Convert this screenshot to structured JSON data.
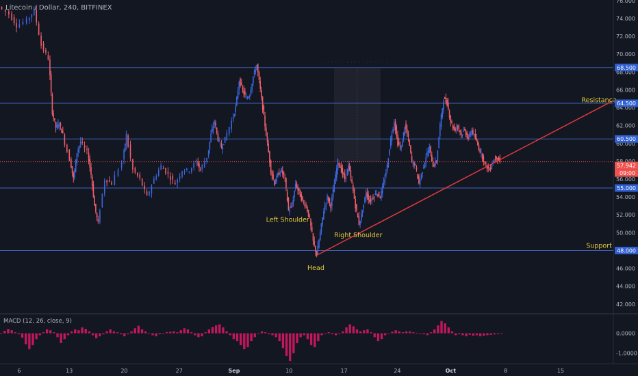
{
  "chart_data": [
    {
      "type": "candlestick",
      "title": "Litecoin / Dollar, 240, BITFINEX",
      "xlabel": "",
      "ylabel": "",
      "x_ticks": [
        "6",
        "13",
        "20",
        "27",
        "Sep",
        "10",
        "17",
        "24",
        "Oct",
        "8",
        "15"
      ],
      "y_ticks": [
        "76.000",
        "74.000",
        "72.000",
        "70.000",
        "68.000",
        "66.000",
        "64.000",
        "62.000",
        "60.000",
        "58.000",
        "56.000",
        "54.000",
        "52.000",
        "50.000",
        "48.000",
        "46.000",
        "44.000",
        "42.000"
      ],
      "ylim": [
        41.5,
        76.5
      ],
      "grid": false,
      "last_price": "57.942",
      "countdown": "09:00",
      "path_points": [
        {
          "x": 0,
          "y": 75.3
        },
        {
          "x": 3,
          "y": 74.5
        },
        {
          "x": 5,
          "y": 73.2
        },
        {
          "x": 8,
          "y": 73.8
        },
        {
          "x": 10,
          "y": 74.9
        },
        {
          "x": 12,
          "y": 71.0
        },
        {
          "x": 14,
          "y": 69.5
        },
        {
          "x": 15,
          "y": 63.5
        },
        {
          "x": 16,
          "y": 61.8
        },
        {
          "x": 17,
          "y": 62.2
        },
        {
          "x": 18,
          "y": 61.0
        },
        {
          "x": 20,
          "y": 58.2
        },
        {
          "x": 21,
          "y": 56.0
        },
        {
          "x": 22,
          "y": 59.0
        },
        {
          "x": 23,
          "y": 60.2
        },
        {
          "x": 25,
          "y": 59.0
        },
        {
          "x": 26,
          "y": 56.5
        },
        {
          "x": 27,
          "y": 53.0
        },
        {
          "x": 28,
          "y": 51.0
        },
        {
          "x": 30,
          "y": 56.0
        },
        {
          "x": 32,
          "y": 55.5
        },
        {
          "x": 35,
          "y": 58.0
        },
        {
          "x": 36,
          "y": 61.0
        },
        {
          "x": 38,
          "y": 57.0
        },
        {
          "x": 40,
          "y": 56.0
        },
        {
          "x": 42,
          "y": 54.0
        },
        {
          "x": 44,
          "y": 56.0
        },
        {
          "x": 46,
          "y": 57.5
        },
        {
          "x": 48,
          "y": 56.5
        },
        {
          "x": 50,
          "y": 55.5
        },
        {
          "x": 52,
          "y": 57.0
        },
        {
          "x": 54,
          "y": 57.0
        },
        {
          "x": 56,
          "y": 58.0
        },
        {
          "x": 57,
          "y": 57.0
        },
        {
          "x": 59,
          "y": 58.5
        },
        {
          "x": 60,
          "y": 61.0
        },
        {
          "x": 61,
          "y": 62.5
        },
        {
          "x": 62,
          "y": 60.5
        },
        {
          "x": 63,
          "y": 59.5
        },
        {
          "x": 64,
          "y": 60.5
        },
        {
          "x": 66,
          "y": 62.5
        },
        {
          "x": 67,
          "y": 64.0
        },
        {
          "x": 68,
          "y": 67.0
        },
        {
          "x": 69,
          "y": 66.0
        },
        {
          "x": 70,
          "y": 65.0
        },
        {
          "x": 71,
          "y": 65.5
        },
        {
          "x": 72,
          "y": 67.5
        },
        {
          "x": 73,
          "y": 68.8
        },
        {
          "x": 74,
          "y": 66.0
        },
        {
          "x": 75,
          "y": 63.0
        },
        {
          "x": 76,
          "y": 60.0
        },
        {
          "x": 77,
          "y": 57.0
        },
        {
          "x": 78,
          "y": 55.5
        },
        {
          "x": 79,
          "y": 56.5
        },
        {
          "x": 80,
          "y": 57.0
        },
        {
          "x": 81,
          "y": 56.0
        },
        {
          "x": 82,
          "y": 52.5
        },
        {
          "x": 83,
          "y": 53.0
        },
        {
          "x": 84,
          "y": 55.5
        },
        {
          "x": 85,
          "y": 54.5
        },
        {
          "x": 86,
          "y": 53.5
        },
        {
          "x": 87,
          "y": 53.0
        },
        {
          "x": 88,
          "y": 51.5
        },
        {
          "x": 89,
          "y": 49.0
        },
        {
          "x": 90,
          "y": 47.5
        },
        {
          "x": 91,
          "y": 50.0
        },
        {
          "x": 92,
          "y": 52.5
        },
        {
          "x": 93,
          "y": 54.0
        },
        {
          "x": 94,
          "y": 53.0
        },
        {
          "x": 95,
          "y": 55.5
        },
        {
          "x": 96,
          "y": 58.0
        },
        {
          "x": 97,
          "y": 57.0
        },
        {
          "x": 98,
          "y": 56.0
        },
        {
          "x": 99,
          "y": 57.5
        },
        {
          "x": 100,
          "y": 55.5
        },
        {
          "x": 101,
          "y": 53.0
        },
        {
          "x": 102,
          "y": 51.0
        },
        {
          "x": 103,
          "y": 52.5
        },
        {
          "x": 104,
          "y": 54.5
        },
        {
          "x": 105,
          "y": 53.5
        },
        {
          "x": 106,
          "y": 54.0
        },
        {
          "x": 107,
          "y": 54.5
        },
        {
          "x": 108,
          "y": 54.0
        },
        {
          "x": 109,
          "y": 55.5
        },
        {
          "x": 110,
          "y": 57.5
        },
        {
          "x": 111,
          "y": 60.5
        },
        {
          "x": 112,
          "y": 62.5
        },
        {
          "x": 113,
          "y": 60.0
        },
        {
          "x": 114,
          "y": 59.5
        },
        {
          "x": 115,
          "y": 62.0
        },
        {
          "x": 116,
          "y": 60.5
        },
        {
          "x": 117,
          "y": 58.0
        },
        {
          "x": 118,
          "y": 57.5
        },
        {
          "x": 119,
          "y": 55.5
        },
        {
          "x": 120,
          "y": 57.0
        },
        {
          "x": 121,
          "y": 58.5
        },
        {
          "x": 122,
          "y": 59.5
        },
        {
          "x": 123,
          "y": 57.5
        },
        {
          "x": 124,
          "y": 58.0
        },
        {
          "x": 125,
          "y": 62.0
        },
        {
          "x": 126,
          "y": 65.0
        },
        {
          "x": 127,
          "y": 64.5
        },
        {
          "x": 128,
          "y": 62.5
        },
        {
          "x": 129,
          "y": 61.5
        },
        {
          "x": 130,
          "y": 62.0
        },
        {
          "x": 131,
          "y": 61.0
        },
        {
          "x": 132,
          "y": 61.5
        },
        {
          "x": 133,
          "y": 60.5
        },
        {
          "x": 134,
          "y": 61.5
        },
        {
          "x": 135,
          "y": 60.5
        },
        {
          "x": 136,
          "y": 59.5
        },
        {
          "x": 137,
          "y": 58.5
        },
        {
          "x": 138,
          "y": 57.5
        },
        {
          "x": 139,
          "y": 57.0
        },
        {
          "x": 140,
          "y": 58.0
        },
        {
          "x": 141,
          "y": 58.5
        },
        {
          "x": 142,
          "y": 57.94
        }
      ],
      "horizontal_levels": [
        {
          "value": 68.5,
          "label": "68.500"
        },
        {
          "value": 64.5,
          "label": "64.500"
        },
        {
          "value": 60.5,
          "label": "60.500"
        },
        {
          "value": 55.0,
          "label": "55.000"
        },
        {
          "value": 48.0,
          "label": "48.000"
        }
      ],
      "trendline": {
        "from": [
          90,
          47.5
        ],
        "to": [
          174,
          64.8
        ]
      },
      "annotations": [
        {
          "text": "Left Shoulder",
          "x": 82,
          "y": 51.2
        },
        {
          "text": "Head",
          "x": 90,
          "y": 45.8
        },
        {
          "text": "Right Shoulder",
          "x": 102,
          "y": 49.5
        },
        {
          "text": "Resistance",
          "x": 168,
          "y": 64.6
        },
        {
          "text": "Support",
          "x": 168,
          "y": 48.3
        }
      ],
      "colors": {
        "background": "#131722",
        "up": "#3b67e0",
        "down": "#ef5f6a",
        "level_line": "#3f63b8",
        "level_label_bg": "#2f5fd0",
        "trendline": "#e03a3a",
        "annotation_text": "#e7cc3a",
        "price_tag": "#ef5350",
        "axis_text": "#b2b5be",
        "divider": "#2a2e39"
      }
    },
    {
      "type": "histogram",
      "title": "MACD (12, 26, close, 9)",
      "y_ticks": [
        "0.0000",
        "-1.0000"
      ],
      "ylim": [
        -1.4,
        1.0
      ],
      "histogram": [
        0.0,
        0.12,
        0.22,
        0.15,
        0.05,
        -0.05,
        -0.22,
        -0.55,
        -0.8,
        -0.6,
        -0.3,
        -0.1,
        0.05,
        0.2,
        0.15,
        0.05,
        -0.2,
        -0.5,
        -0.3,
        -0.1,
        0.1,
        0.2,
        0.15,
        0.3,
        0.22,
        0.1,
        -0.1,
        -0.25,
        -0.15,
        -0.05,
        0.1,
        0.2,
        0.1,
        0.05,
        -0.05,
        -0.15,
        -0.05,
        0.1,
        0.25,
        0.38,
        0.2,
        0.1,
        0.0,
        -0.1,
        -0.15,
        -0.05,
        0.0,
        0.06,
        0.08,
        0.1,
        0.05,
        0.15,
        0.25,
        0.2,
        0.05,
        -0.1,
        -0.2,
        -0.15,
        0.05,
        0.2,
        0.32,
        0.4,
        0.45,
        0.3,
        0.1,
        -0.1,
        -0.3,
        -0.4,
        -0.6,
        -0.8,
        -0.7,
        -0.4,
        -0.2,
        0.0,
        0.1,
        0.05,
        -0.05,
        -0.1,
        -0.2,
        -0.4,
        -0.75,
        -1.15,
        -1.4,
        -1.0,
        -0.5,
        -0.2,
        -0.1,
        -0.3,
        -0.6,
        -0.7,
        -0.4,
        -0.1,
        0.0,
        0.05,
        -0.05,
        -0.1,
        0.0,
        0.1,
        0.3,
        0.45,
        0.35,
        0.2,
        0.1,
        0.15,
        0.2,
        0.05,
        -0.2,
        -0.4,
        -0.3,
        -0.1,
        0.0,
        0.08,
        0.15,
        0.1,
        0.05,
        0.1,
        0.1,
        0.05,
        0.02,
        -0.02,
        -0.05,
        -0.1,
        0.05,
        0.2,
        0.4,
        0.62,
        0.5,
        0.3,
        0.1,
        -0.1,
        -0.05,
        -0.1,
        -0.15,
        -0.08,
        -0.12,
        -0.1,
        -0.15,
        -0.12,
        -0.1,
        -0.08,
        -0.06,
        -0.04,
        -0.02
      ]
    }
  ]
}
